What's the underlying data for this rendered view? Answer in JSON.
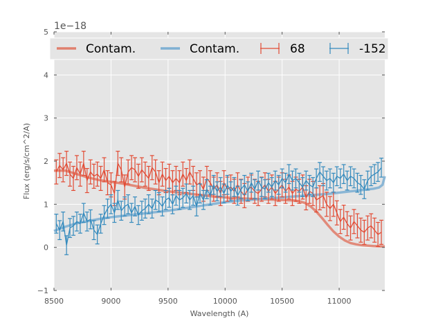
{
  "chart_data": {
    "type": "line",
    "title": "",
    "xlabel": "Wavelength (A)",
    "ylabel": "Flux (erg/s/cm^2/A)",
    "y_offset_label": "1e−18",
    "xlim": [
      8500,
      11400
    ],
    "ylim": [
      -1,
      5
    ],
    "xticks": [
      8500,
      9000,
      9500,
      10000,
      10500,
      11000
    ],
    "yticks": [
      -1,
      0,
      1,
      2,
      3,
      4,
      5
    ],
    "grid": true,
    "legend": {
      "placement": "top",
      "entries": [
        {
          "label": "Contam.",
          "kind": "line",
          "color": "#E0806E"
        },
        {
          "label": "Contam.",
          "kind": "line",
          "color": "#7FB0D3"
        },
        {
          "label": "68",
          "kind": "errorbar",
          "color": "#E24A33"
        },
        {
          "label": "-152",
          "kind": "errorbar",
          "color": "#348ABD"
        }
      ]
    },
    "series": [
      {
        "name": "Contam. (68)",
        "kind": "line",
        "color": "#E0806E",
        "x": [
          8500,
          8600,
          8700,
          8800,
          8900,
          9000,
          9100,
          9200,
          9300,
          9400,
          9500,
          9600,
          9700,
          9800,
          9900,
          10000,
          10100,
          10200,
          10300,
          10400,
          10500,
          10600,
          10650,
          10700,
          10750,
          10800,
          10850,
          10900,
          10950,
          11000,
          11050,
          11100,
          11150,
          11200,
          11300,
          11400
        ],
        "y": [
          1.78,
          1.78,
          1.7,
          1.62,
          1.56,
          1.52,
          1.48,
          1.43,
          1.38,
          1.34,
          1.3,
          1.27,
          1.24,
          1.21,
          1.18,
          1.16,
          1.14,
          1.13,
          1.12,
          1.11,
          1.1,
          1.09,
          1.07,
          1.03,
          0.95,
          0.83,
          0.68,
          0.52,
          0.37,
          0.25,
          0.16,
          0.1,
          0.07,
          0.05,
          0.03,
          0.02
        ]
      },
      {
        "name": "Contam. (-152)",
        "kind": "line",
        "color": "#7FB0D3",
        "x": [
          8500,
          8600,
          8700,
          8800,
          8900,
          9000,
          9100,
          9200,
          9300,
          9400,
          9500,
          9600,
          9700,
          9800,
          9900,
          10000,
          10100,
          10200,
          10300,
          10400,
          10500,
          10600,
          10700,
          10800,
          10900,
          11000,
          11100,
          11200,
          11300,
          11350,
          11380,
          11400
        ],
        "y": [
          0.38,
          0.48,
          0.56,
          0.61,
          0.66,
          0.7,
          0.73,
          0.76,
          0.79,
          0.82,
          0.85,
          0.89,
          0.93,
          0.97,
          1.01,
          1.05,
          1.08,
          1.1,
          1.12,
          1.14,
          1.16,
          1.18,
          1.2,
          1.22,
          1.24,
          1.27,
          1.3,
          1.33,
          1.36,
          1.39,
          1.45,
          1.65
        ]
      },
      {
        "name": "68",
        "kind": "errorbar",
        "color": "#E24A33",
        "x": [
          8520,
          8550,
          8580,
          8610,
          8640,
          8670,
          8700,
          8730,
          8760,
          8790,
          8820,
          8850,
          8880,
          8910,
          8940,
          8970,
          9000,
          9030,
          9060,
          9090,
          9120,
          9150,
          9180,
          9210,
          9240,
          9270,
          9300,
          9330,
          9360,
          9390,
          9420,
          9450,
          9480,
          9510,
          9540,
          9570,
          9600,
          9630,
          9660,
          9690,
          9720,
          9750,
          9780,
          9810,
          9840,
          9870,
          9900,
          9930,
          9960,
          9990,
          10020,
          10050,
          10080,
          10110,
          10140,
          10170,
          10200,
          10230,
          10260,
          10290,
          10320,
          10350,
          10380,
          10410,
          10440,
          10470,
          10500,
          10530,
          10560,
          10590,
          10620,
          10650,
          10680,
          10710,
          10740,
          10770,
          10800,
          10830,
          10860,
          10890,
          10920,
          10950,
          10980,
          11010,
          11040,
          11070,
          11100,
          11130,
          11160,
          11190,
          11220,
          11250,
          11280,
          11310,
          11340,
          11370
        ],
        "y": [
          1.75,
          1.9,
          1.8,
          1.95,
          1.7,
          1.6,
          1.85,
          1.7,
          1.95,
          1.55,
          1.75,
          1.65,
          1.7,
          1.6,
          1.8,
          1.5,
          1.45,
          1.25,
          1.95,
          1.8,
          1.4,
          1.75,
          1.85,
          1.8,
          1.65,
          1.8,
          1.7,
          1.6,
          1.85,
          1.75,
          1.5,
          1.7,
          1.55,
          1.65,
          1.5,
          1.6,
          1.5,
          1.7,
          1.55,
          1.75,
          1.6,
          1.45,
          1.5,
          1.35,
          1.6,
          1.5,
          1.35,
          1.45,
          1.25,
          1.5,
          1.35,
          1.4,
          1.3,
          1.45,
          1.3,
          1.2,
          1.35,
          1.4,
          1.3,
          1.25,
          1.35,
          1.45,
          1.3,
          1.4,
          1.25,
          1.35,
          1.45,
          1.3,
          1.4,
          1.25,
          1.35,
          1.3,
          1.4,
          1.15,
          1.3,
          1.25,
          1.1,
          1.15,
          1.2,
          1.0,
          0.9,
          1.0,
          0.8,
          0.6,
          0.7,
          0.55,
          0.45,
          0.6,
          0.5,
          0.4,
          0.35,
          0.45,
          0.5,
          0.4,
          0.3,
          0.35
        ],
        "yerr": 0.28
      },
      {
        "name": "-152",
        "kind": "errorbar",
        "color": "#348ABD",
        "x": [
          8520,
          8550,
          8580,
          8610,
          8640,
          8670,
          8700,
          8730,
          8760,
          8790,
          8820,
          8850,
          8880,
          8910,
          8940,
          8970,
          9000,
          9030,
          9060,
          9090,
          9120,
          9150,
          9180,
          9210,
          9240,
          9270,
          9300,
          9330,
          9360,
          9390,
          9420,
          9450,
          9480,
          9510,
          9540,
          9570,
          9600,
          9630,
          9660,
          9690,
          9720,
          9750,
          9780,
          9810,
          9840,
          9870,
          9900,
          9930,
          9960,
          9990,
          10020,
          10050,
          10080,
          10110,
          10140,
          10170,
          10200,
          10230,
          10260,
          10290,
          10320,
          10350,
          10380,
          10410,
          10440,
          10470,
          10500,
          10530,
          10560,
          10590,
          10620,
          10650,
          10680,
          10710,
          10740,
          10770,
          10800,
          10830,
          10860,
          10890,
          10920,
          10950,
          10980,
          11010,
          11040,
          11070,
          11100,
          11130,
          11160,
          11190,
          11220,
          11250,
          11280,
          11310,
          11340,
          11370
        ],
        "y": [
          0.55,
          0.4,
          0.6,
          0.05,
          0.45,
          0.5,
          0.6,
          0.55,
          0.8,
          0.6,
          0.65,
          0.4,
          0.3,
          0.55,
          0.75,
          0.9,
          1.0,
          0.8,
          1.1,
          0.85,
          0.95,
          1.0,
          0.8,
          0.95,
          0.75,
          0.85,
          0.9,
          1.0,
          0.9,
          1.1,
          1.05,
          0.95,
          1.1,
          1.15,
          1.0,
          1.2,
          1.1,
          1.15,
          1.25,
          1.1,
          1.2,
          0.95,
          1.25,
          1.1,
          1.35,
          1.2,
          1.45,
          1.3,
          1.4,
          1.25,
          1.45,
          1.3,
          1.4,
          1.2,
          1.35,
          1.45,
          1.3,
          1.5,
          1.35,
          1.55,
          1.4,
          1.35,
          1.5,
          1.4,
          1.55,
          1.45,
          1.6,
          1.5,
          1.7,
          1.55,
          1.6,
          1.5,
          1.4,
          1.55,
          1.45,
          1.4,
          1.6,
          1.75,
          1.65,
          1.55,
          1.6,
          1.5,
          1.65,
          1.6,
          1.7,
          1.55,
          1.65,
          1.6,
          1.5,
          1.45,
          1.35,
          1.55,
          1.65,
          1.7,
          1.75,
          1.85
        ],
        "yerr": 0.22
      }
    ]
  }
}
